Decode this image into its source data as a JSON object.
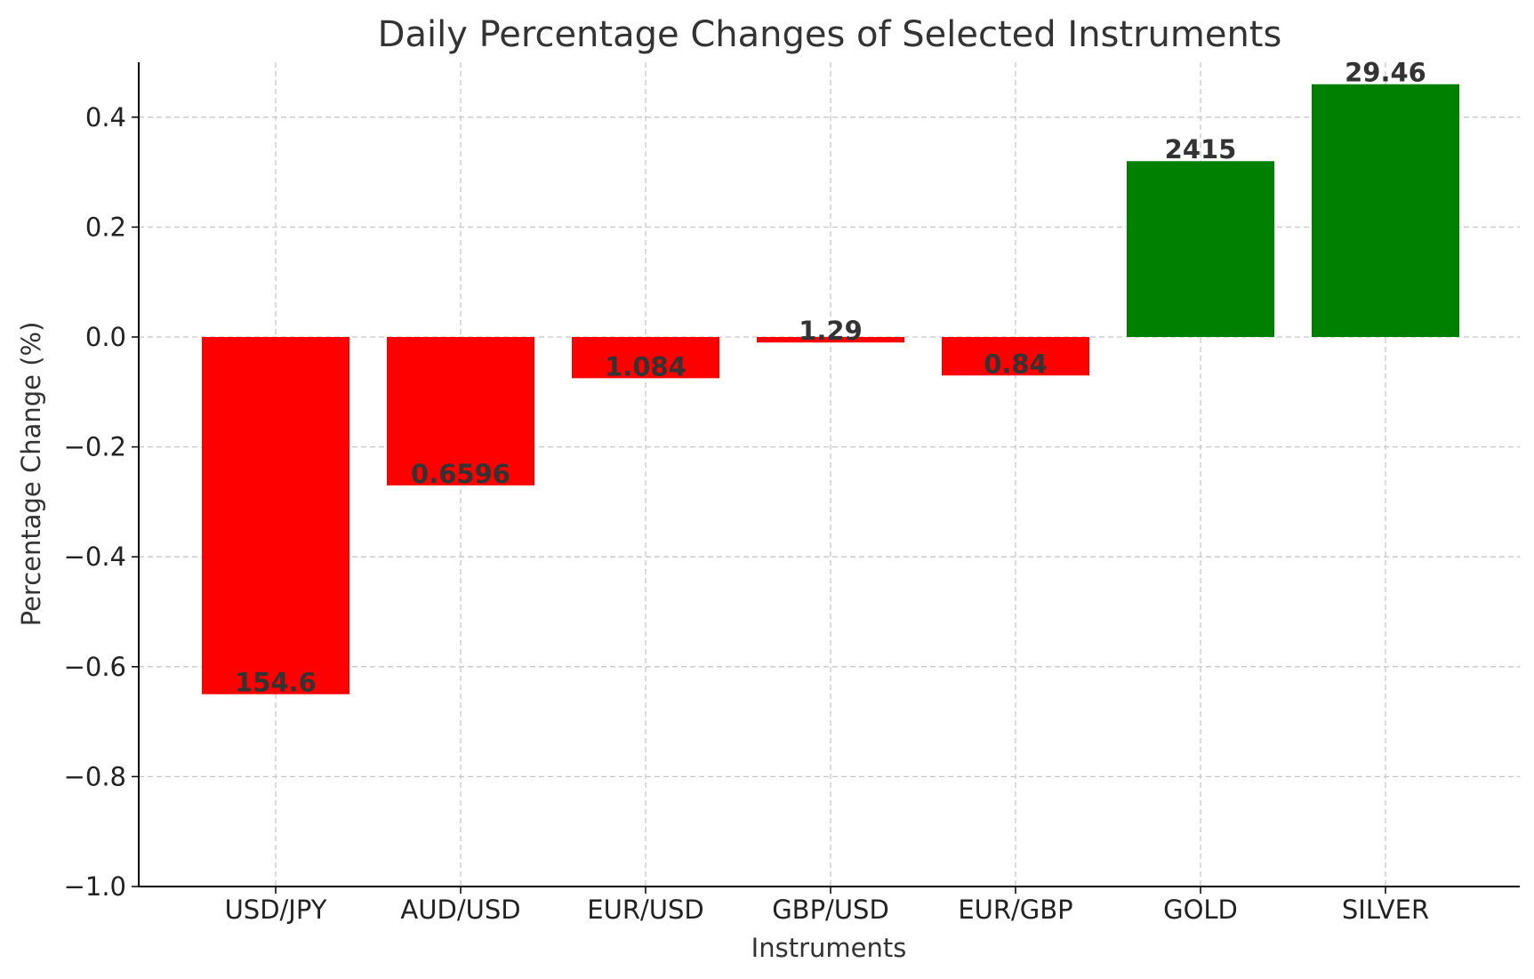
{
  "chart_data": {
    "type": "bar",
    "title": "Daily Percentage Changes of Selected Instruments",
    "xlabel": "Instruments",
    "ylabel": "Percentage Change (%)",
    "ylim": [
      -1.0,
      0.5
    ],
    "yticks": [
      -1.0,
      -0.8,
      -0.6,
      -0.4,
      -0.2,
      0.0,
      0.2,
      0.4
    ],
    "ytick_labels": [
      "−1.0",
      "−0.8",
      "−0.6",
      "−0.4",
      "−0.2",
      "0.0",
      "0.2",
      "0.4"
    ],
    "grid": true,
    "categories": [
      "USD/JPY",
      "AUD/USD",
      "EUR/USD",
      "GBP/USD",
      "EUR/GBP",
      "GOLD",
      "SILVER"
    ],
    "values": [
      -0.65,
      -0.27,
      -0.075,
      -0.01,
      -0.07,
      0.32,
      0.46
    ],
    "data_labels": [
      "154.6",
      "0.6596",
      "1.084",
      "1.29",
      "0.84",
      "2415",
      "29.46"
    ],
    "colors": {
      "negative": "#ff0000",
      "positive": "#008000"
    }
  }
}
